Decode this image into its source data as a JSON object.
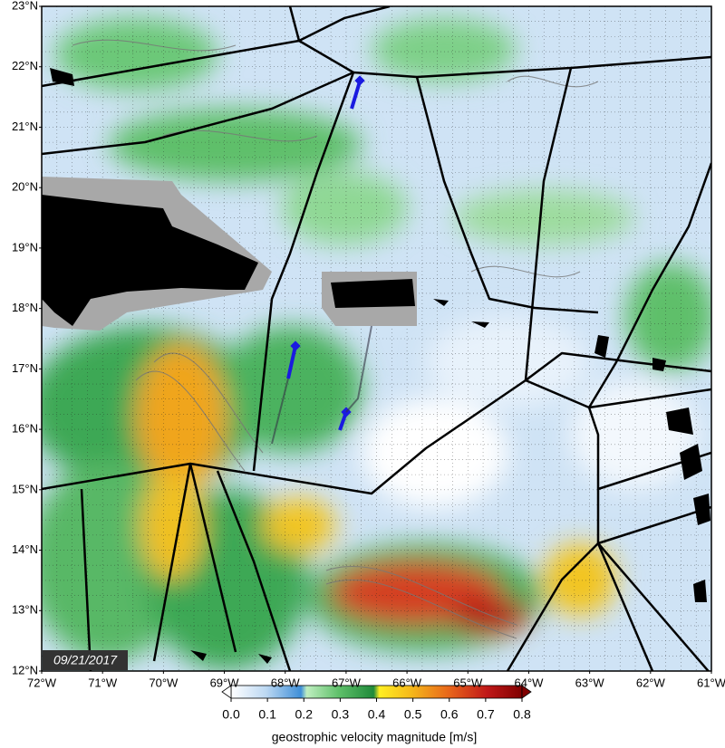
{
  "map": {
    "lat_labels": [
      "23°N",
      "22°N",
      "21°N",
      "20°N",
      "19°N",
      "18°N",
      "17°N",
      "16°N",
      "15°N",
      "14°N",
      "13°N",
      "12°N"
    ],
    "lon_labels": [
      "72°W",
      "71°W",
      "70°W",
      "69°W",
      "68°W",
      "67°W",
      "66°W",
      "65°W",
      "64°W",
      "63°W",
      "62°W",
      "61°W"
    ],
    "date": "09/21/2017"
  },
  "colorbar": {
    "ticks": [
      "0.0",
      "0.1",
      "0.2",
      "0.3",
      "0.4",
      "0.5",
      "0.6",
      "0.7",
      "0.8"
    ],
    "label": "geostrophic velocity magnitude [m/s]"
  }
}
